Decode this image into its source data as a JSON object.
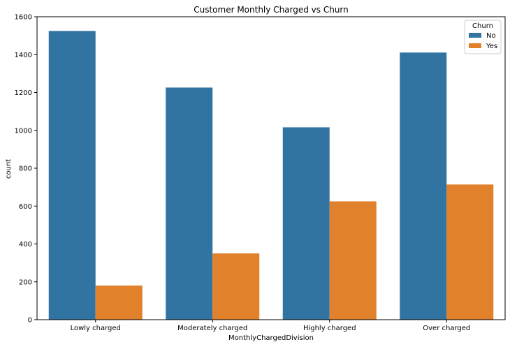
{
  "chart_data": {
    "type": "bar",
    "title": "Customer Monthly Charged vs Churn",
    "xlabel": "MonthlyChargedDivision",
    "ylabel": "count",
    "categories": [
      "Lowly charged",
      "Moderately charged",
      "Highly charged",
      "Over charged"
    ],
    "series": [
      {
        "name": "No",
        "color": "#3274a1",
        "values": [
          1525,
          1226,
          1016,
          1411
        ]
      },
      {
        "name": "Yes",
        "color": "#e1812c",
        "values": [
          180,
          350,
          625,
          714
        ]
      }
    ],
    "ylim": [
      0,
      1600
    ],
    "yticks": [
      0,
      200,
      400,
      600,
      800,
      1000,
      1200,
      1400,
      1600
    ],
    "grid": false,
    "legend": {
      "title": "Churn",
      "position": "top-right"
    }
  }
}
